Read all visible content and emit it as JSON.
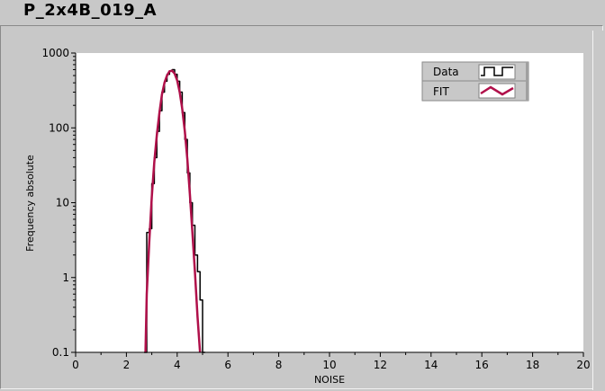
{
  "window": {
    "title": "P_2x4B_019_A"
  },
  "colors": {
    "panel_bg": "#c8c8c8",
    "plot_bg": "#ffffff",
    "data_line": "#000000",
    "fit_line": "#b0104a"
  },
  "chart_data": {
    "type": "line",
    "title": "",
    "xlabel": "NOISE",
    "ylabel": "Frequency absolute",
    "xlim": [
      0,
      20
    ],
    "ylim": [
      0.1,
      1000
    ],
    "yscale": "log",
    "grid": false,
    "legend_position": "top-right",
    "x_ticks": [
      0,
      2,
      4,
      6,
      8,
      10,
      12,
      14,
      16,
      18,
      20
    ],
    "x_tick_labels": [
      "0",
      "2",
      "4",
      "6",
      "8",
      "10",
      "12",
      "14",
      "16",
      "18",
      "20"
    ],
    "y_ticks": [
      0.1,
      1,
      10,
      100,
      1000
    ],
    "y_tick_labels": [
      "0.1",
      "1",
      "10",
      "100",
      "1000"
    ],
    "series": [
      {
        "name": "Data",
        "style": "step",
        "color": "#000000",
        "x": [
          2.7,
          2.8,
          2.9,
          3.0,
          3.1,
          3.2,
          3.3,
          3.4,
          3.5,
          3.6,
          3.7,
          3.8,
          3.9,
          4.0,
          4.1,
          4.2,
          4.3,
          4.4,
          4.5,
          4.6,
          4.7,
          4.8,
          4.9,
          5.0
        ],
        "y": [
          0.1,
          4,
          4.5,
          18,
          40,
          90,
          170,
          300,
          420,
          520,
          580,
          600,
          520,
          420,
          300,
          160,
          70,
          25,
          10,
          5,
          2,
          1.2,
          0.5,
          0.1
        ]
      },
      {
        "name": "FIT",
        "style": "line",
        "color": "#b0104a",
        "x": [
          2.75,
          2.8,
          2.9,
          3.0,
          3.1,
          3.2,
          3.3,
          3.4,
          3.5,
          3.6,
          3.7,
          3.8,
          3.9,
          4.0,
          4.1,
          4.2,
          4.3,
          4.4,
          4.5,
          4.6,
          4.7,
          4.8,
          4.9
        ],
        "y": [
          0.1,
          0.6,
          3,
          12,
          35,
          80,
          160,
          280,
          400,
          500,
          570,
          580,
          530,
          430,
          300,
          180,
          90,
          38,
          13,
          4,
          1.2,
          0.3,
          0.1
        ]
      }
    ]
  }
}
